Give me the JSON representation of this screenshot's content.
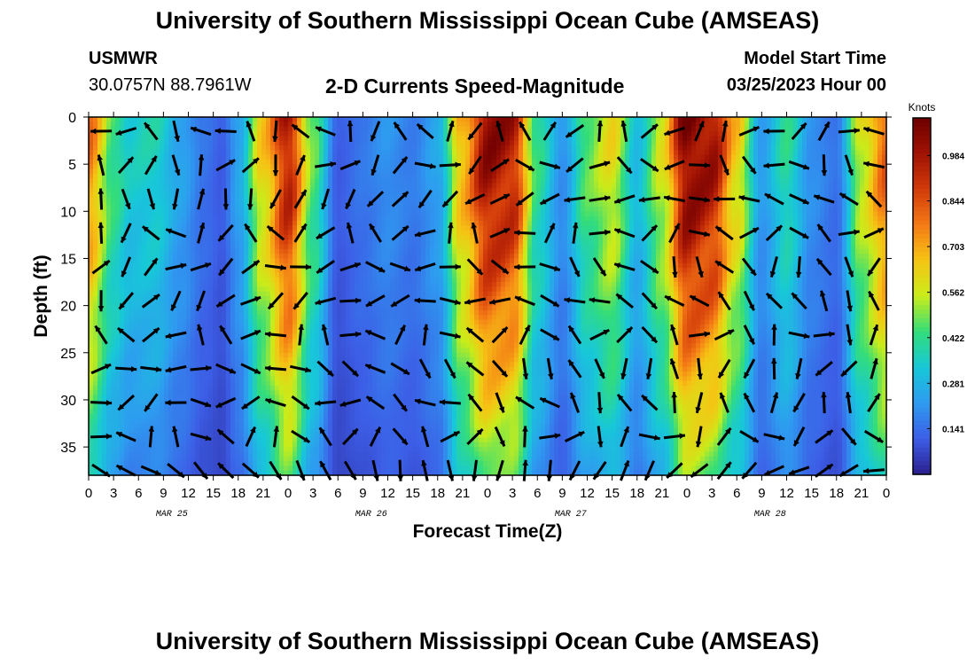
{
  "header": {
    "title": "University of Southern Mississippi Ocean Cube (AMSEAS)",
    "station": "USMWR",
    "coords": "30.0757N  88.7961W",
    "subtitle": "2-D Currents Speed-Magnitude",
    "start_label": "Model Start Time",
    "start_value": "03/25/2023 Hour 00"
  },
  "footer": {
    "title": "University of Southern Mississippi Ocean Cube (AMSEAS)"
  },
  "chart_data": {
    "type": "heatmap",
    "title": "2-D Currents Speed-Magnitude",
    "xlabel": "Forecast Time(Z)",
    "ylabel": "Depth (ft)",
    "xlim": [
      0,
      96
    ],
    "ylim": [
      0,
      38
    ],
    "y_inverted": true,
    "x_ticks": [
      "0",
      "3",
      "6",
      "9",
      "12",
      "15",
      "18",
      "21",
      "0",
      "3",
      "6",
      "9",
      "12",
      "15",
      "18",
      "21",
      "0",
      "3",
      "6",
      "9",
      "12",
      "15",
      "18",
      "21",
      "0",
      "3",
      "6",
      "9",
      "12",
      "15",
      "18",
      "21",
      "0"
    ],
    "y_ticks": [
      0,
      5,
      10,
      15,
      20,
      25,
      30,
      35
    ],
    "date_labels": [
      {
        "label": "MAR 25",
        "hour": 10
      },
      {
        "label": "MAR 26",
        "hour": 34
      },
      {
        "label": "MAR 27",
        "hour": 58
      },
      {
        "label": "MAR 28",
        "hour": 82
      }
    ],
    "colorbar": {
      "units": "Knots",
      "ticks": [
        0.141,
        0.281,
        0.422,
        0.562,
        0.703,
        0.844,
        0.984
      ],
      "tick_labels": [
        "0.141",
        "0.281",
        "0.422",
        "0.562",
        "0.703",
        "0.844",
        "0.984"
      ],
      "range": [
        0.0,
        1.1
      ],
      "colors": [
        "#2b1f8f",
        "#3c5ee6",
        "#2e9bf0",
        "#17c8d8",
        "#33dd7a",
        "#c9ec1a",
        "#f6c414",
        "#f47a16",
        "#d23a0a",
        "#a01204",
        "#6e0000"
      ]
    },
    "speed_profile": [
      {
        "hour": 0,
        "speed": 0.75
      },
      {
        "hour": 3,
        "speed": 0.42
      },
      {
        "hour": 5,
        "speed": 0.32
      },
      {
        "hour": 8,
        "speed": 0.34
      },
      {
        "hour": 11,
        "speed": 0.22
      },
      {
        "hour": 14,
        "speed": 0.12
      },
      {
        "hour": 16,
        "speed": 0.08
      },
      {
        "hour": 18,
        "speed": 0.22
      },
      {
        "hour": 21,
        "speed": 0.62
      },
      {
        "hour": 24,
        "speed": 0.95
      },
      {
        "hour": 27,
        "speed": 0.45
      },
      {
        "hour": 30,
        "speed": 0.08
      },
      {
        "hour": 33,
        "speed": 0.13
      },
      {
        "hour": 36,
        "speed": 0.18
      },
      {
        "hour": 39,
        "speed": 0.14
      },
      {
        "hour": 42,
        "speed": 0.22
      },
      {
        "hour": 45,
        "speed": 0.68
      },
      {
        "hour": 48,
        "speed": 1.0
      },
      {
        "hour": 51,
        "speed": 0.95
      },
      {
        "hour": 54,
        "speed": 0.4
      },
      {
        "hour": 57,
        "speed": 0.18
      },
      {
        "hour": 60,
        "speed": 0.45
      },
      {
        "hour": 63,
        "speed": 0.58
      },
      {
        "hour": 66,
        "speed": 0.28
      },
      {
        "hour": 69,
        "speed": 0.55
      },
      {
        "hour": 72,
        "speed": 1.05
      },
      {
        "hour": 75,
        "speed": 0.98
      },
      {
        "hour": 78,
        "speed": 0.62
      },
      {
        "hour": 81,
        "speed": 0.2
      },
      {
        "hour": 84,
        "speed": 0.38
      },
      {
        "hour": 87,
        "speed": 0.18
      },
      {
        "hour": 90,
        "speed": 0.12
      },
      {
        "hour": 93,
        "speed": 0.55
      },
      {
        "hour": 96,
        "speed": 0.8
      }
    ]
  }
}
